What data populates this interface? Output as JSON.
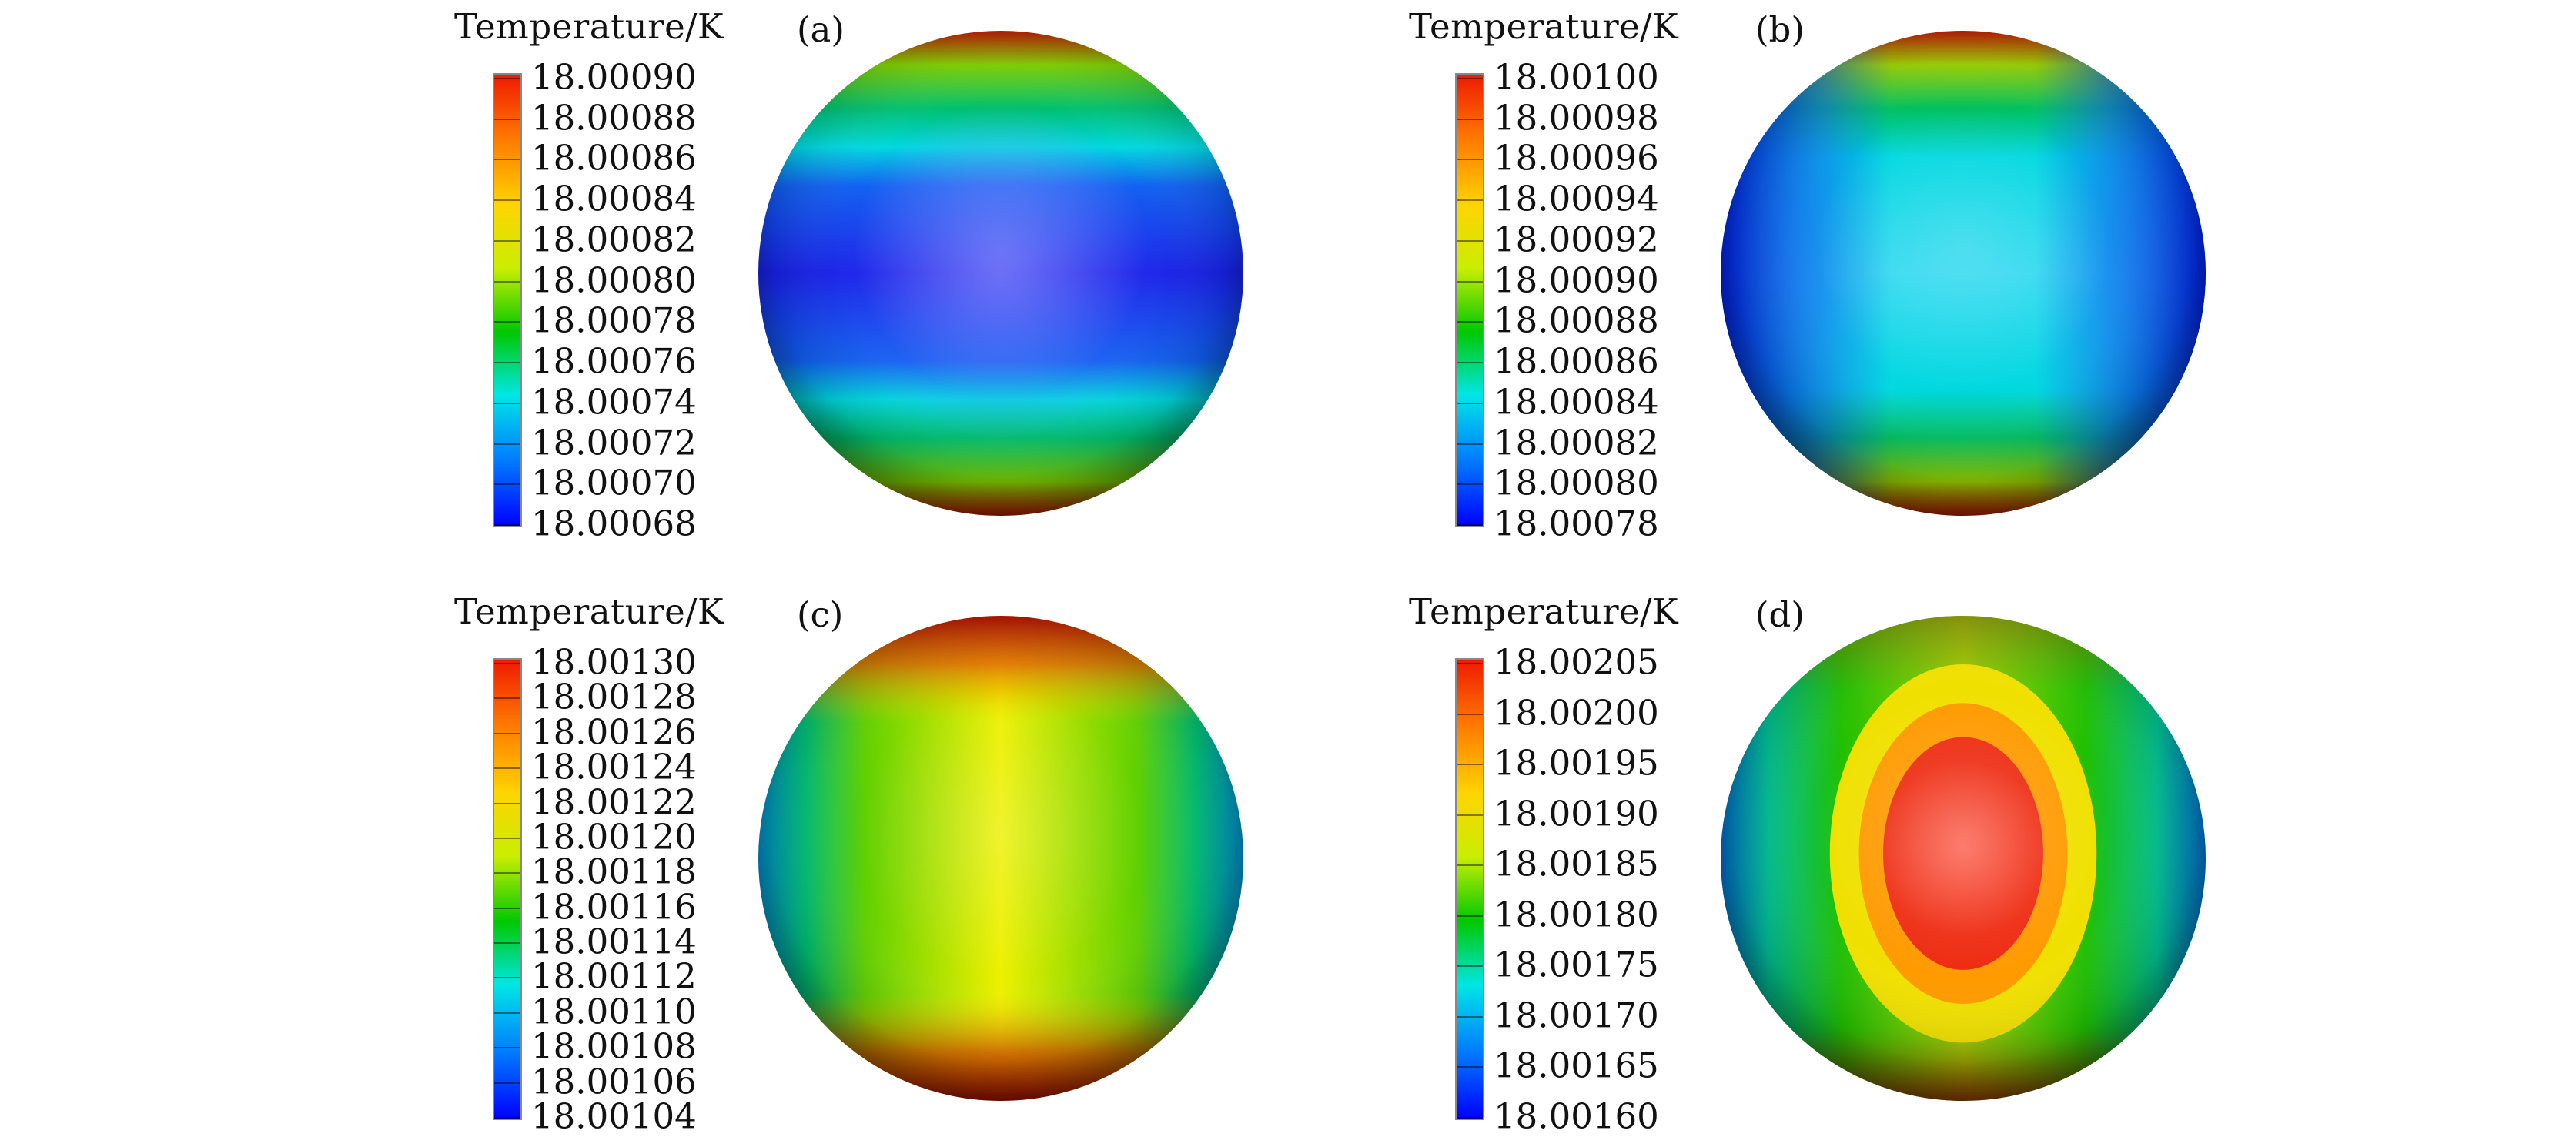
{
  "panels": [
    {
      "id": "a",
      "label": "(a)",
      "colorbar_title": "Temperature/K",
      "ticks": [
        "18.00090",
        "18.00088",
        "18.00086",
        "18.00084",
        "18.00082",
        "18.00080",
        "18.00078",
        "18.00076",
        "18.00074",
        "18.00072",
        "18.00070",
        "18.00068"
      ]
    },
    {
      "id": "b",
      "label": "(b)",
      "colorbar_title": "Temperature/K",
      "ticks": [
        "18.00100",
        "18.00098",
        "18.00096",
        "18.00094",
        "18.00092",
        "18.00090",
        "18.00088",
        "18.00086",
        "18.00084",
        "18.00082",
        "18.00080",
        "18.00078"
      ]
    },
    {
      "id": "c",
      "label": "(c)",
      "colorbar_title": "Temperature/K",
      "ticks": [
        "18.00130",
        "18.00128",
        "18.00126",
        "18.00124",
        "18.00122",
        "18.00120",
        "18.00118",
        "18.00116",
        "18.00114",
        "18.00112",
        "18.00110",
        "18.00108",
        "18.00106",
        "18.00104"
      ]
    },
    {
      "id": "d",
      "label": "(d)",
      "colorbar_title": "Temperature/K",
      "ticks": [
        "18.00205",
        "18.00200",
        "18.00195",
        "18.00190",
        "18.00185",
        "18.00180",
        "18.00175",
        "18.00170",
        "18.00165",
        "18.00160"
      ]
    }
  ],
  "colormap": [
    "#0000ff",
    "#0078ff",
    "#00e6e6",
    "#00c800",
    "#c8ee00",
    "#ffd400",
    "#ff7800",
    "#ee1a00"
  ]
}
